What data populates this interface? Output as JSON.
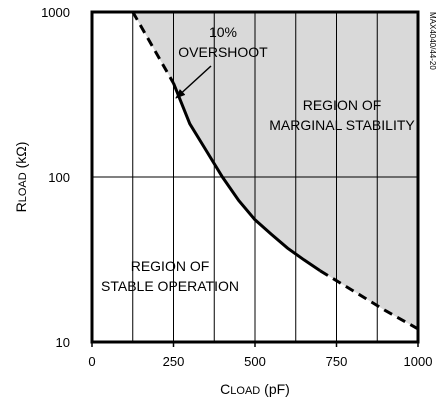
{
  "chart_data": {
    "type": "line",
    "title": "",
    "xlabel": {
      "main": "C",
      "sub": "LOAD",
      "unit": " (pF)"
    },
    "ylabel": {
      "main": "R",
      "sub": "LOAD",
      "unit": " (kΩ)"
    },
    "xlim": [
      0,
      1000
    ],
    "ylim": [
      10,
      1000
    ],
    "yscale": "log",
    "x_ticks": [
      {
        "value": 0,
        "label": "0"
      },
      {
        "value": 250,
        "label": "250"
      },
      {
        "value": 500,
        "label": "500"
      },
      {
        "value": 750,
        "label": "750"
      },
      {
        "value": 1000,
        "label": "1000"
      }
    ],
    "y_ticks": [
      {
        "value": 10,
        "label": "10"
      },
      {
        "value": 100,
        "label": "100"
      },
      {
        "value": 1000,
        "label": "1000"
      }
    ],
    "grid": {
      "vertical_every": 125,
      "horizontal_at": [
        100
      ]
    },
    "series": [
      {
        "solid_segment": [
          [
            250,
            370
          ],
          [
            300,
            210
          ],
          [
            350,
            145
          ],
          [
            400,
            100
          ],
          [
            450,
            72
          ],
          [
            500,
            55
          ],
          [
            550,
            45
          ],
          [
            600,
            37
          ],
          [
            650,
            31.5
          ],
          [
            700,
            27
          ]
        ],
        "dashed_start": [
          [
            125,
            1000
          ],
          [
            250,
            370
          ]
        ],
        "dashed_end": [
          [
            700,
            27
          ],
          [
            800,
            20.5
          ],
          [
            900,
            15.5
          ],
          [
            1000,
            12
          ]
        ]
      }
    ],
    "shaded_region": "above-curve",
    "colors": {
      "shade": "#d9d9d9",
      "line": "#000000",
      "grid": "#000000"
    },
    "annotations": [
      {
        "id": "overshoot",
        "lines": [
          "10%",
          "OVERSHOOT"
        ],
        "arrow_to": [
          255,
          370
        ]
      },
      {
        "id": "marginal",
        "lines": [
          "REGION OF",
          "MARGINAL STABILITY"
        ]
      },
      {
        "id": "stable",
        "lines": [
          "REGION OF",
          "STABLE OPERATION"
        ]
      }
    ],
    "side_id": "MAX4040/44-20"
  }
}
